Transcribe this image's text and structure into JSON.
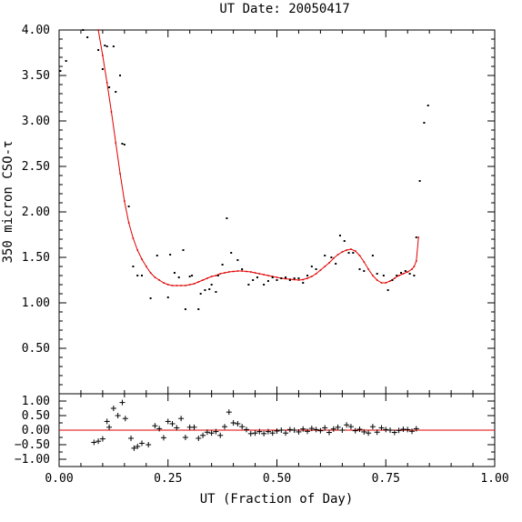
{
  "chart_data": [
    {
      "type": "scatter",
      "title": "UT Date: 20050417",
      "xlabel": "UT (Fraction of Day)",
      "ylabel": "350 micron CSO-τ",
      "xlim": [
        0.0,
        1.0
      ],
      "ylim": [
        0.0,
        4.0
      ],
      "x_ticks": [
        "0.00",
        "0.25",
        "0.50",
        "0.75",
        "1.00"
      ],
      "y_ticks": [
        "0.50",
        "1.00",
        "1.50",
        "2.00",
        "2.50",
        "3.00",
        "3.50",
        "4.00"
      ],
      "grid": false,
      "colors": {
        "points": "#000000",
        "fit": "#e00000"
      },
      "series": [
        {
          "kind": "points",
          "x": [
            0.003,
            0.016,
            0.055,
            0.065,
            0.09,
            0.1,
            0.105,
            0.11,
            0.115,
            0.125,
            0.13,
            0.14,
            0.145,
            0.15,
            0.16,
            0.17,
            0.18,
            0.19,
            0.21,
            0.225,
            0.25,
            0.255,
            0.265,
            0.275,
            0.285,
            0.29,
            0.3,
            0.305,
            0.32,
            0.325,
            0.335,
            0.345,
            0.35,
            0.36,
            0.365,
            0.375,
            0.385,
            0.395,
            0.41,
            0.42,
            0.435,
            0.445,
            0.455,
            0.47,
            0.48,
            0.49,
            0.5,
            0.51,
            0.52,
            0.53,
            0.54,
            0.55,
            0.56,
            0.57,
            0.58,
            0.59,
            0.61,
            0.625,
            0.635,
            0.645,
            0.655,
            0.665,
            0.675,
            0.69,
            0.7,
            0.72,
            0.73,
            0.745,
            0.755,
            0.765,
            0.775,
            0.785,
            0.795,
            0.805,
            0.815,
            0.82,
            0.828,
            0.838,
            0.847
          ],
          "y": [
            3.55,
            3.66,
            4.0,
            3.92,
            3.78,
            3.57,
            3.83,
            3.82,
            3.37,
            3.82,
            3.32,
            3.5,
            2.75,
            2.74,
            2.06,
            1.4,
            1.3,
            1.3,
            1.05,
            1.52,
            1.06,
            1.53,
            1.33,
            1.28,
            1.58,
            0.93,
            1.29,
            1.3,
            0.93,
            1.1,
            1.14,
            1.15,
            1.2,
            1.12,
            1.3,
            1.42,
            1.93,
            1.55,
            1.47,
            1.37,
            1.2,
            1.25,
            1.28,
            1.2,
            1.24,
            1.28,
            1.25,
            1.27,
            1.28,
            1.25,
            1.27,
            1.27,
            1.22,
            1.3,
            1.4,
            1.37,
            1.52,
            1.5,
            1.43,
            1.74,
            1.68,
            1.55,
            1.55,
            1.37,
            1.35,
            1.52,
            1.32,
            1.3,
            1.14,
            1.25,
            1.3,
            1.33,
            1.35,
            1.32,
            1.3,
            1.72,
            2.34,
            2.98,
            3.17
          ]
        },
        {
          "kind": "fit",
          "x": [
            0.09,
            0.1,
            0.11,
            0.12,
            0.13,
            0.14,
            0.15,
            0.16,
            0.17,
            0.18,
            0.19,
            0.2,
            0.21,
            0.22,
            0.23,
            0.24,
            0.25,
            0.26,
            0.27,
            0.28,
            0.29,
            0.3,
            0.31,
            0.32,
            0.33,
            0.34,
            0.35,
            0.36,
            0.37,
            0.38,
            0.39,
            0.4,
            0.41,
            0.42,
            0.43,
            0.44,
            0.45,
            0.46,
            0.47,
            0.48,
            0.49,
            0.5,
            0.51,
            0.52,
            0.53,
            0.54,
            0.55,
            0.56,
            0.57,
            0.58,
            0.59,
            0.6,
            0.61,
            0.62,
            0.63,
            0.64,
            0.65,
            0.66,
            0.67,
            0.68,
            0.69,
            0.7,
            0.71,
            0.72,
            0.73,
            0.74,
            0.75,
            0.76,
            0.77,
            0.78,
            0.79,
            0.8,
            0.81,
            0.815,
            0.82,
            0.825
          ],
          "y": [
            4.0,
            3.72,
            3.42,
            3.1,
            2.76,
            2.42,
            2.12,
            1.88,
            1.71,
            1.58,
            1.48,
            1.4,
            1.33,
            1.28,
            1.25,
            1.22,
            1.2,
            1.19,
            1.19,
            1.19,
            1.19,
            1.2,
            1.21,
            1.23,
            1.25,
            1.27,
            1.29,
            1.3,
            1.32,
            1.33,
            1.34,
            1.345,
            1.35,
            1.35,
            1.345,
            1.34,
            1.33,
            1.32,
            1.31,
            1.3,
            1.29,
            1.28,
            1.27,
            1.265,
            1.26,
            1.255,
            1.25,
            1.255,
            1.27,
            1.29,
            1.32,
            1.36,
            1.4,
            1.44,
            1.49,
            1.53,
            1.56,
            1.58,
            1.59,
            1.57,
            1.52,
            1.45,
            1.37,
            1.3,
            1.25,
            1.22,
            1.22,
            1.24,
            1.27,
            1.3,
            1.32,
            1.34,
            1.37,
            1.4,
            1.46,
            1.72
          ]
        }
      ]
    },
    {
      "type": "scatter",
      "xlim": [
        0.0,
        1.0
      ],
      "ylim": [
        -1.25,
        1.25
      ],
      "x_ticks": [
        "0.00",
        "0.25",
        "0.50",
        "0.75",
        "1.00"
      ],
      "y_ticks": [
        "1.00",
        "0.50",
        "0.00",
        "−0.50",
        "−1.00"
      ],
      "reference_line": 0.0,
      "series": [
        {
          "kind": "residuals",
          "x": [
            0.08,
            0.09,
            0.1,
            0.11,
            0.115,
            0.125,
            0.135,
            0.145,
            0.152,
            0.165,
            0.172,
            0.18,
            0.19,
            0.205,
            0.22,
            0.23,
            0.24,
            0.25,
            0.26,
            0.27,
            0.28,
            0.29,
            0.3,
            0.31,
            0.32,
            0.33,
            0.34,
            0.35,
            0.36,
            0.37,
            0.38,
            0.39,
            0.4,
            0.41,
            0.42,
            0.43,
            0.44,
            0.45,
            0.46,
            0.47,
            0.48,
            0.49,
            0.5,
            0.51,
            0.52,
            0.53,
            0.54,
            0.55,
            0.56,
            0.57,
            0.58,
            0.59,
            0.6,
            0.61,
            0.62,
            0.63,
            0.64,
            0.65,
            0.66,
            0.67,
            0.68,
            0.69,
            0.7,
            0.71,
            0.72,
            0.73,
            0.74,
            0.75,
            0.76,
            0.77,
            0.78,
            0.79,
            0.8,
            0.81,
            0.82
          ],
          "y": [
            -0.42,
            -0.38,
            -0.3,
            0.3,
            0.1,
            0.75,
            0.5,
            0.95,
            0.4,
            -0.28,
            -0.62,
            -0.56,
            -0.45,
            -0.5,
            0.15,
            0.05,
            -0.26,
            0.3,
            0.22,
            0.08,
            0.4,
            -0.25,
            0.1,
            0.1,
            -0.28,
            -0.18,
            -0.07,
            -0.1,
            -0.05,
            -0.18,
            0.12,
            0.62,
            0.25,
            0.22,
            0.12,
            0.02,
            -0.12,
            -0.1,
            -0.05,
            -0.12,
            -0.05,
            -0.1,
            -0.03,
            0.0,
            -0.1,
            0.02,
            0.0,
            -0.06,
            0.04,
            -0.04,
            0.06,
            0.02,
            -0.02,
            0.08,
            -0.08,
            0.04,
            0.1,
            0.0,
            0.18,
            0.12,
            -0.02,
            0.03,
            -0.06,
            -0.1,
            0.12,
            -0.07,
            0.08,
            0.02,
            0.0,
            -0.08,
            -0.01,
            0.03,
            0.02,
            -0.04,
            0.05
          ]
        }
      ]
    }
  ]
}
